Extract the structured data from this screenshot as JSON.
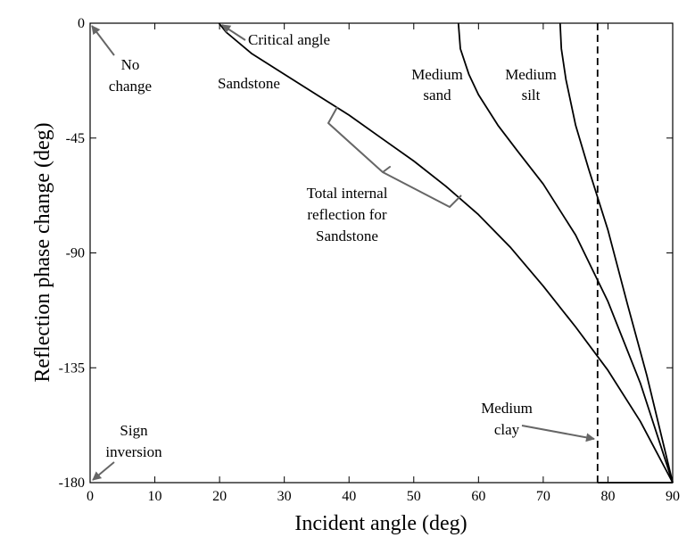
{
  "chart_data": {
    "type": "line",
    "title": "",
    "xlabel": "Incident angle (deg)",
    "ylabel": "Reflection phase change (deg)",
    "xlim": [
      0,
      90
    ],
    "ylim": [
      -180,
      0
    ],
    "xticks": [
      0,
      10,
      20,
      30,
      40,
      50,
      60,
      70,
      80,
      90
    ],
    "yticks": [
      0,
      -45,
      -90,
      -135,
      -180
    ],
    "grid": false,
    "legend": "none",
    "series": [
      {
        "name": "Sandstone",
        "x": [
          19.9,
          21,
          25,
          30,
          35,
          40,
          45,
          50,
          55,
          60,
          65,
          70,
          75,
          80,
          85,
          90
        ],
        "y": [
          0,
          -3.5,
          -12,
          -20,
          -28,
          -36,
          -45,
          -54,
          -64,
          -75,
          -88,
          -103,
          -119,
          -136,
          -156,
          -180
        ]
      },
      {
        "name": "Medium sand",
        "x": [
          56.9,
          57.2,
          58.5,
          60,
          63,
          66,
          70,
          75,
          80,
          85,
          90
        ],
        "y": [
          0,
          -10,
          -20,
          -28,
          -40,
          -50,
          -63,
          -83,
          -109,
          -141,
          -180
        ]
      },
      {
        "name": "Medium silt",
        "x": [
          72.6,
          72.8,
          73.5,
          75,
          77,
          80,
          83,
          86,
          90
        ],
        "y": [
          0,
          -10,
          -22,
          -40,
          -57,
          -81,
          -110,
          -138,
          -180
        ]
      },
      {
        "name": "Medium clay",
        "x": [
          78.4,
          78.4
        ],
        "y": [
          0,
          -180
        ]
      }
    ],
    "annotations": {
      "critical_angle": "Critical angle",
      "no_change_line1": "No",
      "no_change_line2": "change",
      "sandstone": "Sandstone",
      "medium_sand_line1": "Medium",
      "medium_sand_line2": "sand",
      "medium_silt_line1": "Medium",
      "medium_silt_line2": "silt",
      "tir_line1": "Total internal",
      "tir_line2": "reflection for",
      "tir_line3": "Sandstone",
      "medium_clay_line1": "Medium",
      "medium_clay_line2": "clay",
      "sign_inversion_line1": "Sign",
      "sign_inversion_line2": "inversion"
    }
  },
  "colors": {
    "curve": "#000000",
    "annotation_gray": "#666666"
  }
}
